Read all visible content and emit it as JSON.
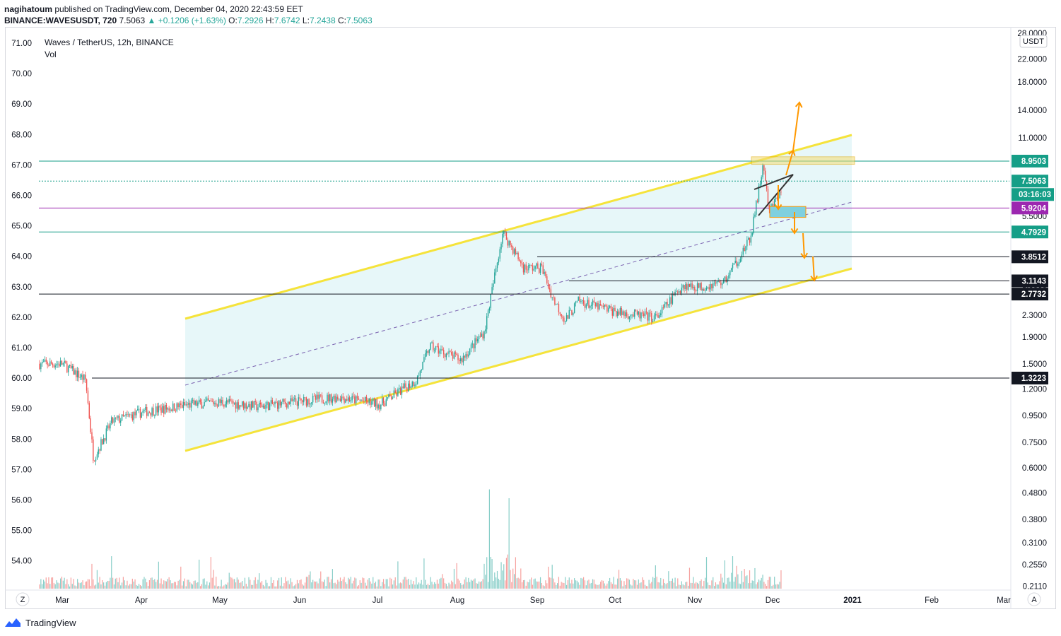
{
  "header": {
    "publisher": "nagihatoum",
    "published_text": "published on TradingView.com, December 04, 2020 22:43:59 EET",
    "symbol": "BINANCE:WAVESUSDT, 720",
    "last": "7.5063",
    "change": "▲ +0.1206 (+1.63%)",
    "open_label": "O:",
    "open": "7.2926",
    "high_label": "H:",
    "high": "7.6742",
    "low_label": "L:",
    "low": "7.2438",
    "close_label": "C:",
    "close": "7.5063"
  },
  "legend": {
    "title": "Waves / TetherUS, 12h, BINANCE",
    "indicator": "Vol"
  },
  "footer": {
    "brand": "TradingView"
  },
  "controls": {
    "left_button": "Z",
    "right_button": "A",
    "currency": "USDT"
  },
  "colors": {
    "channel": "#f5e33b",
    "channel_fill": "#e3f6f8",
    "green_level": "#159e87",
    "magenta_level": "#9c27b0",
    "black_level": "#131722",
    "arrow": "#ff9800",
    "candle_up": "#26a69a",
    "candle_down": "#ef5350",
    "zone_fill": "#f4dc74",
    "box_fill": "#7fd0df"
  },
  "chart_data": {
    "type": "candlestick",
    "title": "Waves / TetherUS, 12h, BINANCE",
    "x_labels": [
      "Mar",
      "Apr",
      "May",
      "Jun",
      "Jul",
      "Aug",
      "Sep",
      "Oct",
      "Nov",
      "Dec",
      "2021",
      "Feb",
      "Mar"
    ],
    "left_axis_labels": [
      "71.00",
      "70.00",
      "69.00",
      "68.00",
      "67.00",
      "66.00",
      "65.00",
      "64.00",
      "63.00",
      "62.00",
      "61.00",
      "60.00",
      "59.00",
      "58.00",
      "57.00",
      "56.00",
      "55.00",
      "54.00"
    ],
    "right_axis_labels": [
      "28.0000",
      "22.0000",
      "18.0000",
      "14.0000",
      "11.0000",
      "5.5000",
      "3.0000",
      "2.3000",
      "1.9000",
      "1.5000",
      "1.2000",
      "0.9500",
      "0.7500",
      "0.6000",
      "0.4800",
      "0.3800",
      "0.3100",
      "0.2550",
      "0.2110"
    ],
    "right_axis_scale": "log",
    "right_axis_unit": "USDT",
    "price_levels": [
      {
        "value": 8.9503,
        "label": "8.9503",
        "color": "#159e87"
      },
      {
        "value": 7.5063,
        "label": "7.5063",
        "color": "#159e87",
        "style": "dotted"
      },
      {
        "value": 5.9204,
        "label": "5.9204",
        "color": "#9c27b0"
      },
      {
        "value": 4.7929,
        "label": "4.7929",
        "color": "#159e87"
      },
      {
        "value": 3.8512,
        "label": "3.8512",
        "color": "#131722"
      },
      {
        "value": 3.1143,
        "label": "3.1143",
        "color": "#131722"
      },
      {
        "value": 2.7732,
        "label": "2.7732",
        "color": "#131722"
      },
      {
        "value": 1.3223,
        "label": "1.3223",
        "color": "#131722"
      }
    ],
    "countdown": "03:16:03",
    "series": [
      {
        "name": "WAVESUSDT",
        "points": [
          [
            "2020-03-01",
            1.5
          ],
          [
            "2020-03-10",
            1.3
          ],
          [
            "2020-03-13",
            0.65
          ],
          [
            "2020-03-20",
            0.9
          ],
          [
            "2020-04-01",
            0.98
          ],
          [
            "2020-04-20",
            1.05
          ],
          [
            "2020-05-01",
            1.07
          ],
          [
            "2020-05-15",
            1.03
          ],
          [
            "2020-06-01",
            1.08
          ],
          [
            "2020-06-15",
            1.12
          ],
          [
            "2020-07-01",
            1.05
          ],
          [
            "2020-07-15",
            1.3
          ],
          [
            "2020-07-20",
            1.75
          ],
          [
            "2020-08-01",
            1.55
          ],
          [
            "2020-08-10",
            2.0
          ],
          [
            "2020-08-14",
            3.3
          ],
          [
            "2020-08-17",
            4.8
          ],
          [
            "2020-08-25",
            3.5
          ],
          [
            "2020-09-01",
            3.5
          ],
          [
            "2020-09-05",
            2.7
          ],
          [
            "2020-09-10",
            2.2
          ],
          [
            "2020-09-15",
            2.6
          ],
          [
            "2020-10-01",
            2.35
          ],
          [
            "2020-10-15",
            2.25
          ],
          [
            "2020-10-25",
            3.0
          ],
          [
            "2020-11-01",
            2.95
          ],
          [
            "2020-11-10",
            3.1
          ],
          [
            "2020-11-20",
            4.5
          ],
          [
            "2020-11-25",
            8.8
          ],
          [
            "2020-11-27",
            5.7
          ],
          [
            "2020-12-04",
            7.5063
          ]
        ]
      }
    ]
  }
}
